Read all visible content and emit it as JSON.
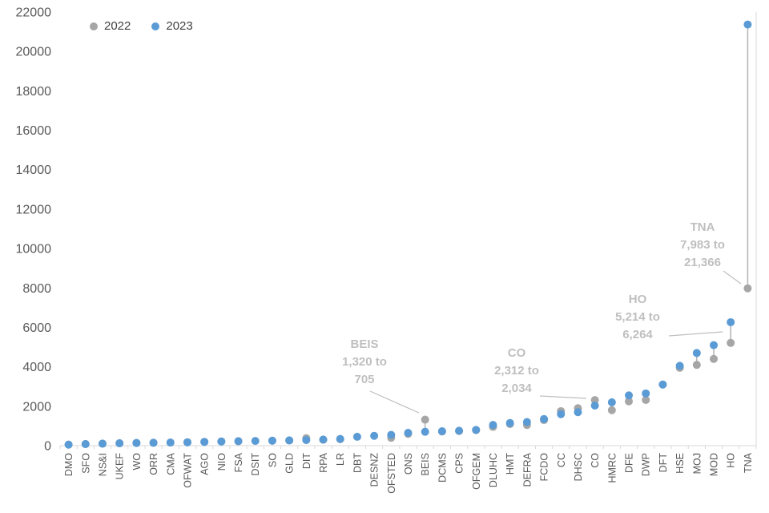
{
  "chart_data": {
    "type": "scatter",
    "title": "",
    "legend": [
      {
        "name": "2022",
        "color": "#A6A6A6"
      },
      {
        "name": "2023",
        "color": "#5B9BD5"
      }
    ],
    "legend_position": "top-left",
    "grid": "off",
    "ylim": [
      0,
      22000
    ],
    "ytick_step": 2000,
    "axis_color": "#D9D9D9",
    "label_color": "#595959",
    "annotation_color": "#BFBFBF",
    "connector_color": "#B7B7B7",
    "categories": [
      "DMO",
      "SFO",
      "NS&I",
      "UKEF",
      "WO",
      "ORR",
      "CMA",
      "OFWAT",
      "AGO",
      "NIO",
      "FSA",
      "DSIT",
      "SO",
      "GLD",
      "DIT",
      "RPA",
      "LR",
      "DBT",
      "DESNZ",
      "OFSTED",
      "ONS",
      "BEIS",
      "DCMS",
      "CPS",
      "OFGEM",
      "DLUHC",
      "HMT",
      "DEFRA",
      "FCDO",
      "CC",
      "DHSC",
      "CO",
      "HMRC",
      "DFE",
      "DWP",
      "DFT",
      "HSE",
      "MOJ",
      "MOD",
      "HO",
      "TNA"
    ],
    "series": [
      {
        "name": "2022",
        "color": "#A6A6A6",
        "values": [
          55,
          85,
          105,
          125,
          140,
          150,
          160,
          175,
          195,
          215,
          222,
          null,
          250,
          262,
          380,
          300,
          330,
          null,
          null,
          400,
          600,
          1320,
          720,
          745,
          790,
          950,
          1100,
          1050,
          1300,
          1750,
          1900,
          2312,
          1800,
          2250,
          2320,
          3100,
          3950,
          4100,
          4400,
          5214,
          7983
        ]
      },
      {
        "name": "2023",
        "color": "#5B9BD5",
        "values": [
          50,
          80,
          100,
          120,
          135,
          145,
          158,
          170,
          190,
          210,
          228,
          240,
          252,
          268,
          285,
          310,
          340,
          450,
          500,
          550,
          650,
          705,
          730,
          755,
          800,
          1050,
          1150,
          1200,
          1350,
          1600,
          1700,
          2034,
          2200,
          2550,
          2650,
          3100,
          4050,
          4700,
          5100,
          6264,
          21366
        ]
      }
    ],
    "annotations": [
      {
        "category": "BEIS",
        "lines": [
          "BEIS",
          "1,320 to",
          "705"
        ]
      },
      {
        "category": "CO",
        "lines": [
          "CO",
          "2,312 to",
          "2,034"
        ]
      },
      {
        "category": "HO",
        "lines": [
          "HO",
          "5,214 to",
          "6,264"
        ]
      },
      {
        "category": "TNA",
        "lines": [
          "TNA",
          "7,983 to",
          "21,366"
        ]
      }
    ]
  }
}
